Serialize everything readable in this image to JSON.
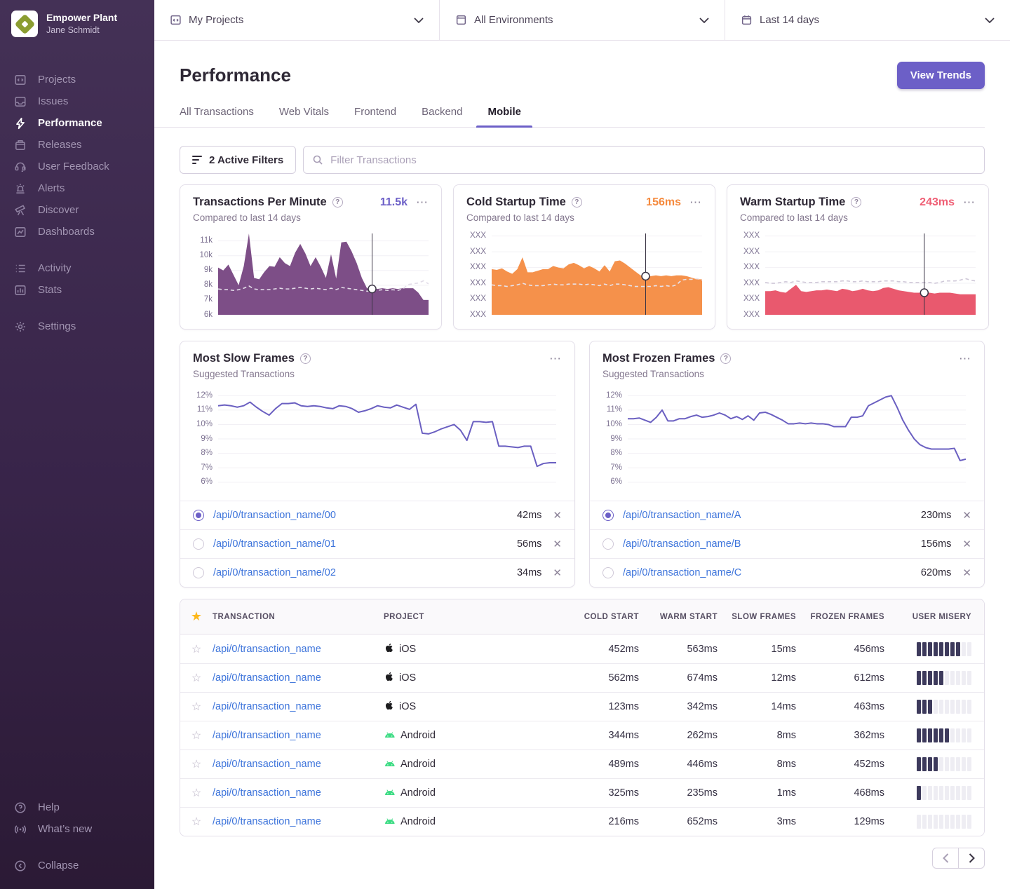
{
  "colors": {
    "accent": "#6C5FC7",
    "link": "#3D74DB",
    "gold": "#FDB81B",
    "misery_fill": "#3D3A5C",
    "chart_purple": "#7D4E87",
    "chart_orange": "#F5914B",
    "chart_red": "#E9596E",
    "value_purple": "#6C5FC7",
    "value_orange": "#F58A3E",
    "value_red": "#EF5E74"
  },
  "sidebar": {
    "org_name": "Empower Plant",
    "user_name": "Jane Schmidt",
    "primary": [
      {
        "icon": "projects-icon",
        "label": "Projects",
        "active": false
      },
      {
        "icon": "issues-icon",
        "label": "Issues",
        "active": false
      },
      {
        "icon": "lightning-icon",
        "label": "Performance",
        "active": true
      },
      {
        "icon": "releases-icon",
        "label": "Releases",
        "active": false
      },
      {
        "icon": "feedback-icon",
        "label": "User Feedback",
        "active": false
      },
      {
        "icon": "siren-icon",
        "label": "Alerts",
        "active": false
      },
      {
        "icon": "telescope-icon",
        "label": "Discover",
        "active": false
      },
      {
        "icon": "dashboards-icon",
        "label": "Dashboards",
        "active": false
      }
    ],
    "secondary": [
      {
        "icon": "activity-icon",
        "label": "Activity"
      },
      {
        "icon": "stats-icon",
        "label": "Stats"
      }
    ],
    "settings": {
      "icon": "gear-icon",
      "label": "Settings"
    },
    "footer": [
      {
        "icon": "help-circle-icon",
        "label": "Help"
      },
      {
        "icon": "broadcast-icon",
        "label": "What’s new"
      }
    ],
    "collapse": {
      "icon": "collapse-icon",
      "label": "Collapse"
    }
  },
  "topbar": {
    "project_filter": "My Projects",
    "environment_filter": "All Environments",
    "date_filter": "Last 14 days"
  },
  "header": {
    "title": "Performance",
    "view_trends_label": "View Trends",
    "tabs": [
      "All Transactions",
      "Web Vitals",
      "Frontend",
      "Backend",
      "Mobile"
    ],
    "active_tab": "Mobile"
  },
  "filters": {
    "active_filters_label": "2 Active Filters",
    "search_placeholder": "Filter Transactions"
  },
  "mini_cards": [
    {
      "title": "Transactions Per Minute",
      "subtitle": "Compared to last 14 days",
      "value": "11.5k",
      "value_color": "#6C5FC7",
      "chart": {
        "type": "area",
        "color": "#7D4E87",
        "dashed_color": "#e2dce8",
        "ylim": [
          6000,
          11600
        ],
        "grid_values": [
          11000,
          10000,
          9000,
          8000,
          7000,
          6000
        ],
        "tick_labels": [
          "11k",
          "10k",
          "9k",
          "8k",
          "7k",
          "6k"
        ],
        "marker_index": 30,
        "values": [
          9200,
          9000,
          9400,
          8700,
          8000,
          9300,
          11500,
          8500,
          8400,
          8900,
          9300,
          9250,
          9900,
          9500,
          9300,
          10200,
          10800,
          10150,
          9300,
          9900,
          9250,
          8500,
          10100,
          8450,
          10900,
          10950,
          10300,
          9500,
          8500,
          7800,
          7750,
          7750,
          7800,
          7750,
          7800,
          7750,
          7800,
          7800,
          7800,
          7500,
          7000,
          7000
        ],
        "dashed": [
          7750,
          7700,
          7700,
          7650,
          7700,
          7800,
          7950,
          7750,
          7700,
          7700,
          7700,
          7750,
          7800,
          7750,
          7750,
          7800,
          7850,
          7800,
          7750,
          7800,
          7750,
          7700,
          7800,
          7700,
          7850,
          7800,
          7750,
          7700,
          7650,
          7600,
          7600,
          7650,
          7700,
          7650,
          7700,
          7650,
          7750,
          8050,
          8100,
          8150,
          8300,
          8100
        ]
      }
    },
    {
      "title": "Cold Startup Time",
      "subtitle": "Compared to last 14 days",
      "value": "156ms",
      "value_color": "#F58A3E",
      "chart": {
        "type": "area",
        "color": "#F5914B",
        "dashed_color": "#e8e2ea",
        "ylim": [
          0,
          105
        ],
        "grid_values": [
          100,
          80,
          60,
          40,
          20,
          0
        ],
        "tick_labels": [
          "XXX",
          "XXX",
          "XXX",
          "XXX",
          "XXX",
          "XXX"
        ],
        "marker_index": 30,
        "values": [
          58,
          57,
          59,
          55,
          52,
          58,
          73,
          54,
          54,
          56,
          58,
          58,
          62,
          60,
          59,
          64,
          66,
          63,
          59,
          62,
          59,
          55,
          63,
          55,
          68,
          69,
          65,
          60,
          55,
          50,
          49,
          49,
          50,
          49,
          50,
          49,
          50,
          50,
          49,
          47,
          45,
          45
        ],
        "dashed": [
          38,
          37,
          37,
          36,
          37,
          38,
          40,
          38,
          37,
          37,
          37,
          38,
          39,
          38,
          38,
          39,
          39,
          39,
          38,
          39,
          38,
          37,
          39,
          37,
          39,
          39,
          38,
          37,
          36,
          36,
          36,
          36,
          37,
          36,
          37,
          36,
          38,
          44,
          45,
          45,
          46,
          44
        ]
      }
    },
    {
      "title": "Warm Startup Time",
      "subtitle": "Compared to last 14 days",
      "value": "243ms",
      "value_color": "#EF5E74",
      "chart": {
        "type": "area",
        "color": "#E9596E",
        "dashed_color": "#cfc8d8",
        "ylim": [
          0,
          105
        ],
        "grid_values": [
          100,
          80,
          60,
          40,
          20,
          0
        ],
        "tick_labels": [
          "XXX",
          "XXX",
          "XXX",
          "XXX",
          "XXX",
          "XXX"
        ],
        "marker_index": 31,
        "values": [
          30,
          30,
          31,
          29,
          28,
          33,
          38,
          30,
          29,
          30,
          31,
          31,
          32,
          31,
          30,
          33,
          32,
          30,
          31,
          33,
          31,
          30,
          31,
          34,
          35,
          33,
          31,
          30,
          29,
          28,
          28,
          28,
          28,
          27,
          28,
          28,
          28,
          27,
          26,
          26,
          26,
          26
        ],
        "dashed": [
          41,
          40,
          40,
          41,
          42,
          41,
          43,
          42,
          41,
          41,
          41,
          42,
          42,
          42,
          42,
          43,
          43,
          42,
          42,
          43,
          42,
          42,
          42,
          43,
          43,
          43,
          42,
          42,
          41,
          41,
          41,
          41,
          41,
          40,
          41,
          43,
          43,
          43,
          44,
          46,
          44,
          43
        ]
      }
    }
  ],
  "suggested_cards": [
    {
      "title": "Most Slow Frames",
      "subtitle": "Suggested Transactions",
      "selected_index": 0,
      "chart": {
        "type": "line",
        "color": "#6a5fc1",
        "ylim": [
          5.7,
          12.5
        ],
        "grid_values": [
          12,
          11,
          10,
          9,
          8,
          7,
          6
        ],
        "tick_labels": [
          "12%",
          "11%",
          "10%",
          "9%",
          "8%",
          "7%",
          "6%"
        ],
        "values": [
          11.3,
          11.35,
          11.3,
          11.2,
          11.3,
          11.55,
          11.2,
          10.9,
          10.65,
          11.1,
          11.45,
          11.45,
          11.5,
          11.3,
          11.25,
          11.3,
          11.25,
          11.15,
          11.1,
          11.3,
          11.25,
          11.1,
          10.85,
          10.95,
          11.1,
          11.3,
          11.2,
          11.15,
          11.35,
          11.2,
          11.05,
          11.4,
          9.4,
          9.35,
          9.5,
          9.7,
          9.85,
          10.0,
          9.6,
          8.9,
          10.2,
          10.2,
          10.15,
          10.2,
          8.5,
          8.5,
          8.45,
          8.4,
          8.5,
          8.5,
          7.1,
          7.3,
          7.35,
          7.35
        ]
      },
      "rows": [
        {
          "name": "/api/0/transaction_name/00",
          "value": "42ms"
        },
        {
          "name": "/api/0/transaction_name/01",
          "value": "56ms"
        },
        {
          "name": "/api/0/transaction_name/02",
          "value": "34ms"
        }
      ]
    },
    {
      "title": "Most Frozen Frames",
      "subtitle": "Suggested Transactions",
      "selected_index": 0,
      "chart": {
        "type": "line",
        "color": "#6a5fc1",
        "ylim": [
          5.7,
          12.5
        ],
        "grid_values": [
          12,
          11,
          10,
          9,
          8,
          7,
          6
        ],
        "tick_labels": [
          "12%",
          "11%",
          "10%",
          "9%",
          "8%",
          "7%",
          "6%"
        ],
        "values": [
          10.4,
          10.4,
          10.45,
          10.3,
          10.15,
          10.5,
          11.0,
          10.25,
          10.25,
          10.4,
          10.4,
          10.55,
          10.65,
          10.5,
          10.55,
          10.65,
          10.8,
          10.65,
          10.4,
          10.55,
          10.35,
          10.6,
          10.3,
          10.8,
          10.85,
          10.7,
          10.5,
          10.3,
          10.05,
          10.05,
          10.1,
          10.05,
          10.1,
          10.05,
          10.05,
          10.0,
          9.85,
          9.85,
          9.85,
          10.5,
          10.5,
          10.6,
          11.3,
          11.5,
          11.7,
          11.9,
          12.0,
          11.2,
          10.3,
          9.6,
          9.0,
          8.6,
          8.4,
          8.3,
          8.3,
          8.3,
          8.3,
          8.35,
          7.5,
          7.6
        ]
      },
      "rows": [
        {
          "name": "/api/0/transaction_name/A",
          "value": "230ms"
        },
        {
          "name": "/api/0/transaction_name/B",
          "value": "156ms"
        },
        {
          "name": "/api/0/transaction_name/C",
          "value": "620ms"
        }
      ]
    }
  ],
  "table": {
    "columns": [
      "Transaction",
      "Project",
      "Cold Start",
      "Warm Start",
      "Slow Frames",
      "Frozen Frames",
      "User Misery"
    ],
    "rows": [
      {
        "transaction": "/api/0/transaction_name",
        "platform": "apple",
        "project": "iOS",
        "cold": "452ms",
        "warm": "563ms",
        "slow": "15ms",
        "frozen": "456ms",
        "misery": 8
      },
      {
        "transaction": "/api/0/transaction_name",
        "platform": "apple",
        "project": "iOS",
        "cold": "562ms",
        "warm": "674ms",
        "slow": "12ms",
        "frozen": "612ms",
        "misery": 5
      },
      {
        "transaction": "/api/0/transaction_name",
        "platform": "apple",
        "project": "iOS",
        "cold": "123ms",
        "warm": "342ms",
        "slow": "14ms",
        "frozen": "463ms",
        "misery": 3
      },
      {
        "transaction": "/api/0/transaction_name",
        "platform": "android",
        "project": "Android",
        "cold": "344ms",
        "warm": "262ms",
        "slow": "8ms",
        "frozen": "362ms",
        "misery": 6
      },
      {
        "transaction": "/api/0/transaction_name",
        "platform": "android",
        "project": "Android",
        "cold": "489ms",
        "warm": "446ms",
        "slow": "8ms",
        "frozen": "452ms",
        "misery": 4
      },
      {
        "transaction": "/api/0/transaction_name",
        "platform": "android",
        "project": "Android",
        "cold": "325ms",
        "warm": "235ms",
        "slow": "1ms",
        "frozen": "468ms",
        "misery": 1
      },
      {
        "transaction": "/api/0/transaction_name",
        "platform": "android",
        "project": "Android",
        "cold": "216ms",
        "warm": "652ms",
        "slow": "3ms",
        "frozen": "129ms",
        "misery": 0
      }
    ],
    "misery_segments": 10
  },
  "pagination": {
    "prev_enabled": false,
    "next_enabled": true
  }
}
